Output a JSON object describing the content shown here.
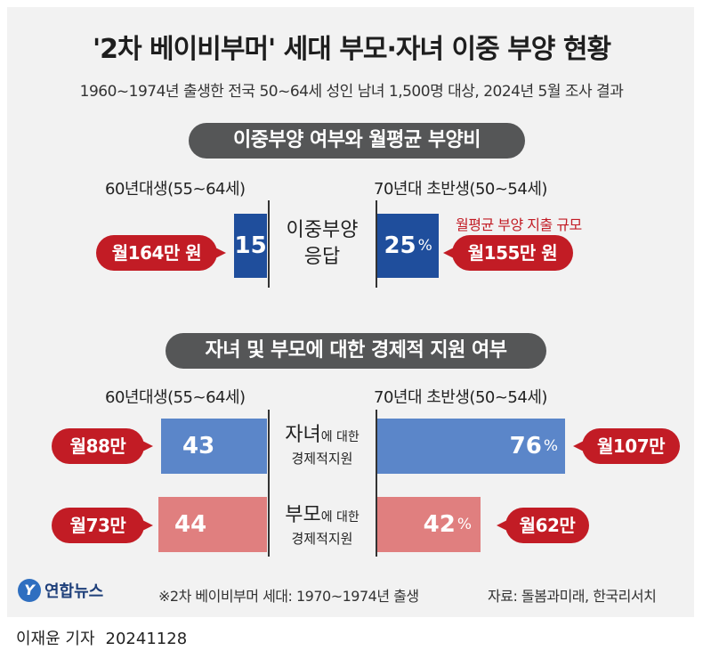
{
  "title": "'2차 베이비부머' 세대 부모·자녀 이중 부양 현황",
  "subtitle": "1960~1974년 출생한 전국 50~64세 성인 남녀 1,500명 대상, 2024년 5월 조사 결과",
  "chart_data": [
    {
      "type": "bar",
      "title": "이중부양 여부와 월평균 부양비",
      "groups": [
        "60년대생(55~64세)",
        "70년대 초반생(50~54세)"
      ],
      "category_label_line1": "이중부양",
      "category_label_line2": "응답",
      "values": [
        15,
        25
      ],
      "value_labels": [
        "15",
        "25"
      ],
      "percent_sign": "%",
      "monthly_cost_labels": [
        "월164만 원",
        "월155만 원"
      ],
      "monthly_cost_note": "월평균 부양 지출 규모",
      "colors": {
        "bar": "#1f4e9c",
        "callout": "#c21c25"
      }
    },
    {
      "type": "bar",
      "title": "자녀 및 부모에 대한 경제적 지원 여부",
      "groups": [
        "60년대생(55~64세)",
        "70년대 초반생(50~54세)"
      ],
      "series": [
        {
          "label_main": "자녀",
          "label_sub": "에 대한",
          "label_line2": "경제적지원",
          "values": [
            43,
            76
          ],
          "value_labels": [
            "43",
            "76"
          ],
          "monthly_cost_labels": [
            "월88만",
            "월107만"
          ],
          "color": "#5b86c9"
        },
        {
          "label_main": "부모",
          "label_sub": "에 대한",
          "label_line2": "경제적지원",
          "values": [
            44,
            42
          ],
          "value_labels": [
            "44",
            "42"
          ],
          "monthly_cost_labels": [
            "월73만",
            "월62만"
          ],
          "color": "#e07f7f"
        }
      ],
      "percent_sign": "%",
      "xlim": [
        0,
        100
      ]
    }
  ],
  "footer": {
    "logo_text": "연합뉴스",
    "note": "※2차 베이비부머 세대: 1970~1974년 출생",
    "source": "자료: 돌봄과미래, 한국리서치"
  },
  "byline": {
    "reporter": "이재윤 기자",
    "date": "20241128"
  }
}
